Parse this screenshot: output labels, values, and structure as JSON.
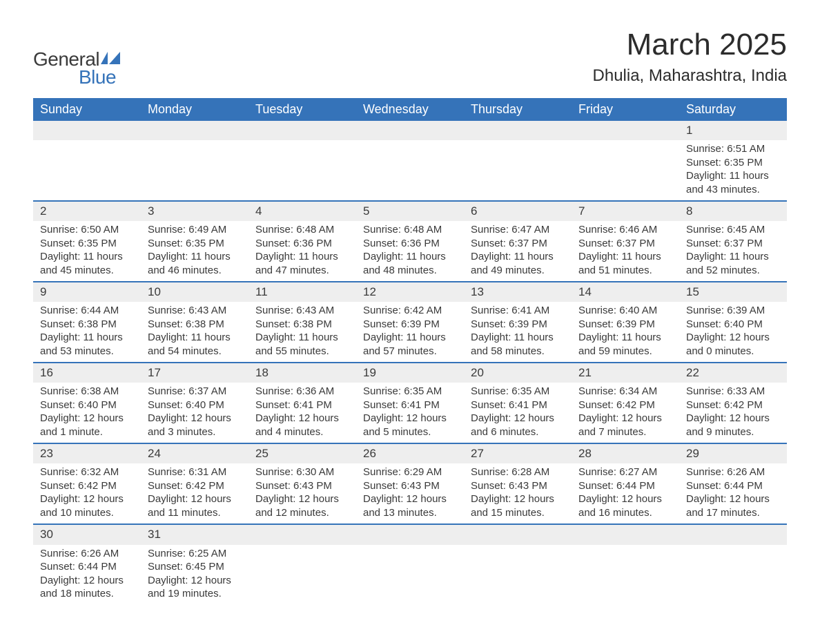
{
  "logo": {
    "text_general": "General",
    "text_blue": "Blue",
    "flag_color": "#3573b9"
  },
  "title": "March 2025",
  "location": "Dhulia, Maharashtra, India",
  "colors": {
    "header_bg": "#3573b9",
    "header_text": "#ffffff",
    "daynum_bg": "#eeeeee",
    "row_border": "#3573b9",
    "text": "#3a3a3a",
    "page_bg": "#ffffff"
  },
  "typography": {
    "title_fontsize": 44,
    "location_fontsize": 24,
    "header_fontsize": 18,
    "daynum_fontsize": 17,
    "body_fontsize": 15
  },
  "days_of_week": [
    "Sunday",
    "Monday",
    "Tuesday",
    "Wednesday",
    "Thursday",
    "Friday",
    "Saturday"
  ],
  "calendar": {
    "type": "table",
    "start_day_index": 6,
    "num_days": 31,
    "cells": {
      "1": {
        "sunrise": "Sunrise: 6:51 AM",
        "sunset": "Sunset: 6:35 PM",
        "daylight1": "Daylight: 11 hours",
        "daylight2": "and 43 minutes."
      },
      "2": {
        "sunrise": "Sunrise: 6:50 AM",
        "sunset": "Sunset: 6:35 PM",
        "daylight1": "Daylight: 11 hours",
        "daylight2": "and 45 minutes."
      },
      "3": {
        "sunrise": "Sunrise: 6:49 AM",
        "sunset": "Sunset: 6:35 PM",
        "daylight1": "Daylight: 11 hours",
        "daylight2": "and 46 minutes."
      },
      "4": {
        "sunrise": "Sunrise: 6:48 AM",
        "sunset": "Sunset: 6:36 PM",
        "daylight1": "Daylight: 11 hours",
        "daylight2": "and 47 minutes."
      },
      "5": {
        "sunrise": "Sunrise: 6:48 AM",
        "sunset": "Sunset: 6:36 PM",
        "daylight1": "Daylight: 11 hours",
        "daylight2": "and 48 minutes."
      },
      "6": {
        "sunrise": "Sunrise: 6:47 AM",
        "sunset": "Sunset: 6:37 PM",
        "daylight1": "Daylight: 11 hours",
        "daylight2": "and 49 minutes."
      },
      "7": {
        "sunrise": "Sunrise: 6:46 AM",
        "sunset": "Sunset: 6:37 PM",
        "daylight1": "Daylight: 11 hours",
        "daylight2": "and 51 minutes."
      },
      "8": {
        "sunrise": "Sunrise: 6:45 AM",
        "sunset": "Sunset: 6:37 PM",
        "daylight1": "Daylight: 11 hours",
        "daylight2": "and 52 minutes."
      },
      "9": {
        "sunrise": "Sunrise: 6:44 AM",
        "sunset": "Sunset: 6:38 PM",
        "daylight1": "Daylight: 11 hours",
        "daylight2": "and 53 minutes."
      },
      "10": {
        "sunrise": "Sunrise: 6:43 AM",
        "sunset": "Sunset: 6:38 PM",
        "daylight1": "Daylight: 11 hours",
        "daylight2": "and 54 minutes."
      },
      "11": {
        "sunrise": "Sunrise: 6:43 AM",
        "sunset": "Sunset: 6:38 PM",
        "daylight1": "Daylight: 11 hours",
        "daylight2": "and 55 minutes."
      },
      "12": {
        "sunrise": "Sunrise: 6:42 AM",
        "sunset": "Sunset: 6:39 PM",
        "daylight1": "Daylight: 11 hours",
        "daylight2": "and 57 minutes."
      },
      "13": {
        "sunrise": "Sunrise: 6:41 AM",
        "sunset": "Sunset: 6:39 PM",
        "daylight1": "Daylight: 11 hours",
        "daylight2": "and 58 minutes."
      },
      "14": {
        "sunrise": "Sunrise: 6:40 AM",
        "sunset": "Sunset: 6:39 PM",
        "daylight1": "Daylight: 11 hours",
        "daylight2": "and 59 minutes."
      },
      "15": {
        "sunrise": "Sunrise: 6:39 AM",
        "sunset": "Sunset: 6:40 PM",
        "daylight1": "Daylight: 12 hours",
        "daylight2": "and 0 minutes."
      },
      "16": {
        "sunrise": "Sunrise: 6:38 AM",
        "sunset": "Sunset: 6:40 PM",
        "daylight1": "Daylight: 12 hours",
        "daylight2": "and 1 minute."
      },
      "17": {
        "sunrise": "Sunrise: 6:37 AM",
        "sunset": "Sunset: 6:40 PM",
        "daylight1": "Daylight: 12 hours",
        "daylight2": "and 3 minutes."
      },
      "18": {
        "sunrise": "Sunrise: 6:36 AM",
        "sunset": "Sunset: 6:41 PM",
        "daylight1": "Daylight: 12 hours",
        "daylight2": "and 4 minutes."
      },
      "19": {
        "sunrise": "Sunrise: 6:35 AM",
        "sunset": "Sunset: 6:41 PM",
        "daylight1": "Daylight: 12 hours",
        "daylight2": "and 5 minutes."
      },
      "20": {
        "sunrise": "Sunrise: 6:35 AM",
        "sunset": "Sunset: 6:41 PM",
        "daylight1": "Daylight: 12 hours",
        "daylight2": "and 6 minutes."
      },
      "21": {
        "sunrise": "Sunrise: 6:34 AM",
        "sunset": "Sunset: 6:42 PM",
        "daylight1": "Daylight: 12 hours",
        "daylight2": "and 7 minutes."
      },
      "22": {
        "sunrise": "Sunrise: 6:33 AM",
        "sunset": "Sunset: 6:42 PM",
        "daylight1": "Daylight: 12 hours",
        "daylight2": "and 9 minutes."
      },
      "23": {
        "sunrise": "Sunrise: 6:32 AM",
        "sunset": "Sunset: 6:42 PM",
        "daylight1": "Daylight: 12 hours",
        "daylight2": "and 10 minutes."
      },
      "24": {
        "sunrise": "Sunrise: 6:31 AM",
        "sunset": "Sunset: 6:42 PM",
        "daylight1": "Daylight: 12 hours",
        "daylight2": "and 11 minutes."
      },
      "25": {
        "sunrise": "Sunrise: 6:30 AM",
        "sunset": "Sunset: 6:43 PM",
        "daylight1": "Daylight: 12 hours",
        "daylight2": "and 12 minutes."
      },
      "26": {
        "sunrise": "Sunrise: 6:29 AM",
        "sunset": "Sunset: 6:43 PM",
        "daylight1": "Daylight: 12 hours",
        "daylight2": "and 13 minutes."
      },
      "27": {
        "sunrise": "Sunrise: 6:28 AM",
        "sunset": "Sunset: 6:43 PM",
        "daylight1": "Daylight: 12 hours",
        "daylight2": "and 15 minutes."
      },
      "28": {
        "sunrise": "Sunrise: 6:27 AM",
        "sunset": "Sunset: 6:44 PM",
        "daylight1": "Daylight: 12 hours",
        "daylight2": "and 16 minutes."
      },
      "29": {
        "sunrise": "Sunrise: 6:26 AM",
        "sunset": "Sunset: 6:44 PM",
        "daylight1": "Daylight: 12 hours",
        "daylight2": "and 17 minutes."
      },
      "30": {
        "sunrise": "Sunrise: 6:26 AM",
        "sunset": "Sunset: 6:44 PM",
        "daylight1": "Daylight: 12 hours",
        "daylight2": "and 18 minutes."
      },
      "31": {
        "sunrise": "Sunrise: 6:25 AM",
        "sunset": "Sunset: 6:45 PM",
        "daylight1": "Daylight: 12 hours",
        "daylight2": "and 19 minutes."
      }
    }
  }
}
